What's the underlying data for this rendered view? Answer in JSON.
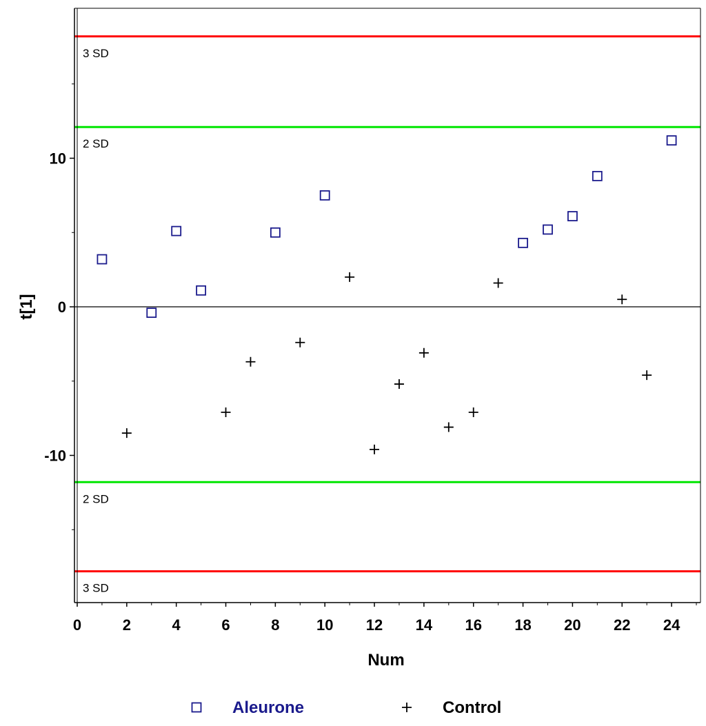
{
  "chart_data": {
    "type": "scatter",
    "xlabel": "Num",
    "ylabel": "t[1]",
    "xlim": [
      0,
      25
    ],
    "ylim": [
      -19.6,
      20.3
    ],
    "x_ticks": [
      0,
      2,
      4,
      6,
      8,
      10,
      12,
      14,
      16,
      18,
      20,
      22,
      24
    ],
    "y_ticks": [
      -10,
      0,
      10
    ],
    "y_minor_ticks": [
      -15,
      -5,
      5,
      15
    ],
    "grid": false,
    "reference_lines": [
      {
        "label": "3 SD",
        "y": 18.2,
        "color": "#ff0000"
      },
      {
        "label": "2 SD",
        "y": 12.1,
        "color": "#00e600"
      },
      {
        "label": "2 SD",
        "y": -11.8,
        "color": "#00e600"
      },
      {
        "label": "3 SD",
        "y": -17.8,
        "color": "#ff0000"
      }
    ],
    "series": [
      {
        "name": "Aleurone",
        "marker": "square",
        "color": "#1a1a8c",
        "x": [
          1,
          3,
          4,
          5,
          8,
          10,
          18,
          19,
          20,
          21,
          24
        ],
        "y": [
          3.2,
          -0.4,
          5.1,
          1.1,
          5.0,
          7.5,
          4.3,
          5.2,
          6.1,
          8.8,
          11.2
        ]
      },
      {
        "name": "Control",
        "marker": "plus",
        "color": "#000000",
        "x": [
          2,
          6,
          7,
          9,
          11,
          12,
          13,
          14,
          15,
          16,
          17,
          22,
          23
        ],
        "y": [
          -8.5,
          -7.1,
          -3.7,
          -2.4,
          2.0,
          -9.6,
          -5.2,
          -3.1,
          -8.1,
          -7.1,
          1.6,
          0.5,
          -4.6
        ]
      }
    ],
    "legend_position": "bottom"
  }
}
